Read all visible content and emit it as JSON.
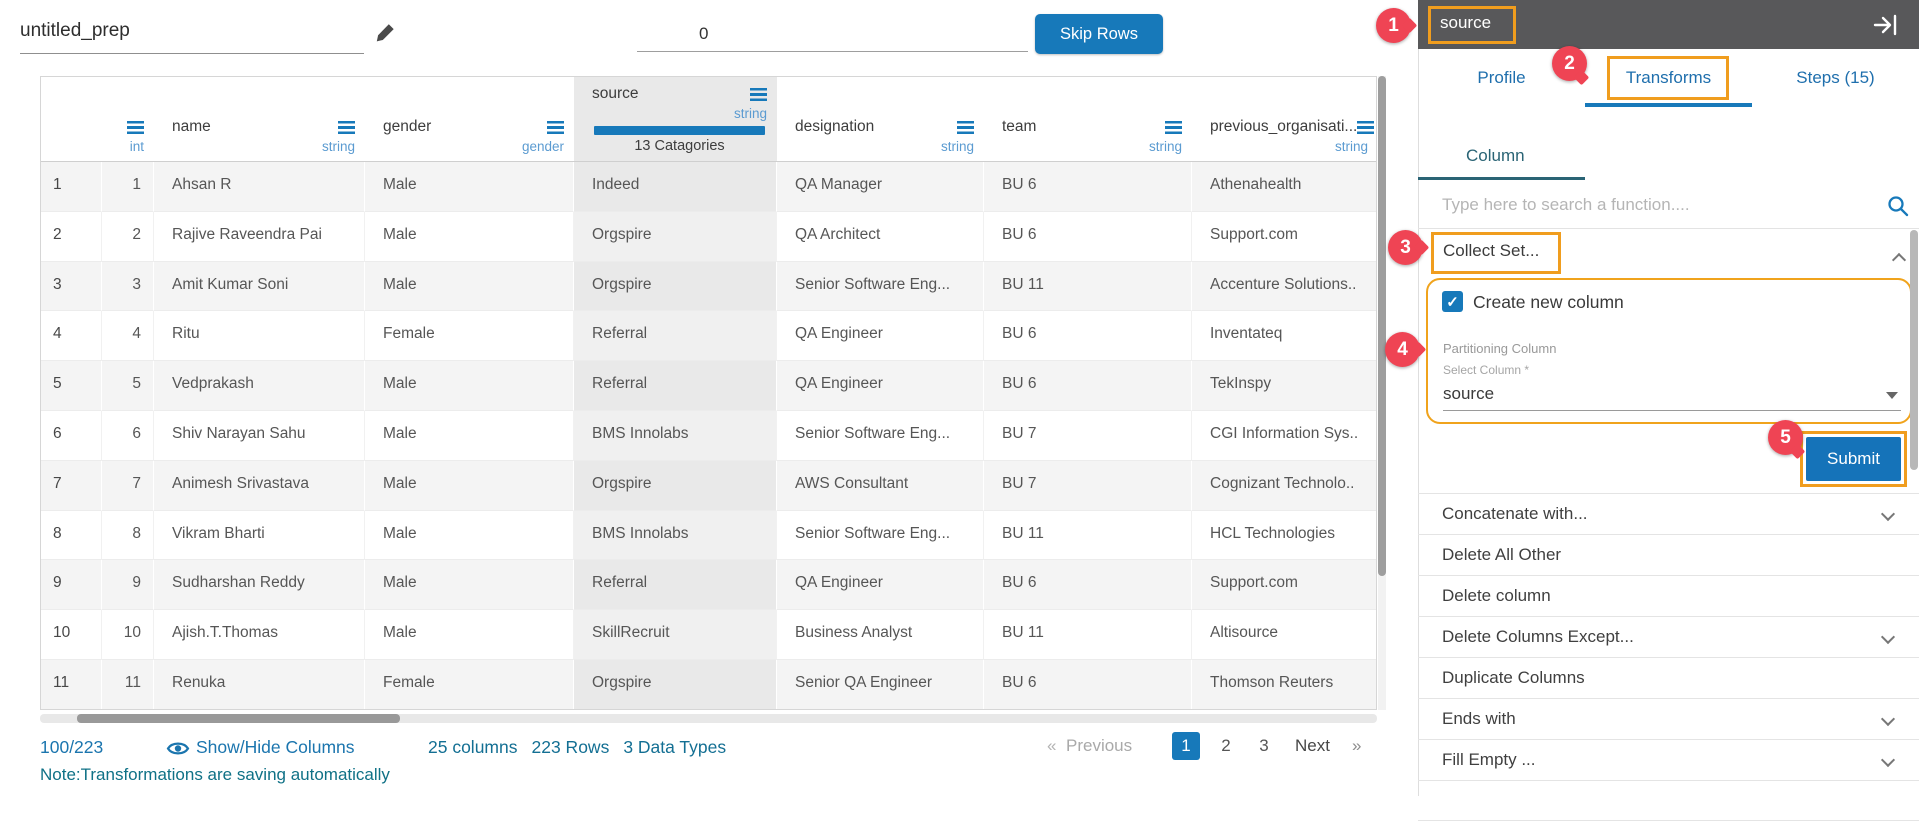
{
  "topbar": {
    "title": "untitled_prep",
    "skip_rows_value": "0",
    "skip_rows_button": "Skip Rows"
  },
  "table": {
    "columns": [
      {
        "label": "",
        "type": "int",
        "kind": "int"
      },
      {
        "label": "name",
        "type": "string",
        "kind": "text"
      },
      {
        "label": "gender",
        "type": "gender",
        "kind": "text"
      },
      {
        "label": "source",
        "type": "string",
        "kind": "source",
        "categories": "13 Catagories"
      },
      {
        "label": "designation",
        "type": "string",
        "kind": "text"
      },
      {
        "label": "team",
        "type": "string",
        "kind": "text"
      },
      {
        "label": "previous_organisati...",
        "type": "string",
        "kind": "text"
      }
    ],
    "rows": [
      [
        "1",
        "1",
        "Ahsan R",
        "Male",
        "Indeed",
        "QA Manager",
        "BU 6",
        "Athenahealth"
      ],
      [
        "2",
        "2",
        "Rajive Raveendra Pai",
        "Male",
        "Orgspire",
        "QA Architect",
        "BU 6",
        "Support.com"
      ],
      [
        "3",
        "3",
        "Amit Kumar Soni",
        "Male",
        "Orgspire",
        "Senior Software Eng...",
        "BU 11",
        "Accenture Solutions.."
      ],
      [
        "4",
        "4",
        "Ritu",
        "Female",
        "Referral",
        "QA Engineer",
        "BU 6",
        "Inventateq"
      ],
      [
        "5",
        "5",
        "Vedprakash",
        "Male",
        "Referral",
        "QA Engineer",
        "BU 6",
        "TekInspy"
      ],
      [
        "6",
        "6",
        "Shiv Narayan Sahu",
        "Male",
        "BMS Innolabs",
        "Senior Software Eng...",
        "BU 7",
        "CGI Information Sys.."
      ],
      [
        "7",
        "7",
        "Animesh Srivastava",
        "Male",
        "Orgspire",
        "AWS Consultant",
        "BU 7",
        "Cognizant Technolo.."
      ],
      [
        "8",
        "8",
        "Vikram Bharti",
        "Male",
        "BMS Innolabs",
        "Senior Software Eng...",
        "BU 11",
        "HCL Technologies"
      ],
      [
        "9",
        "9",
        "Sudharshan Reddy",
        "Male",
        "Referral",
        "QA Engineer",
        "BU 6",
        "Support.com"
      ],
      [
        "10",
        "10",
        "Ajish.T.Thomas",
        "Male",
        "SkillRecruit",
        "Business Analyst",
        "BU 11",
        "Altisource"
      ],
      [
        "11",
        "11",
        "Renuka",
        "Female",
        "Orgspire",
        "Senior QA Engineer",
        "BU 6",
        "Thomson Reuters"
      ]
    ]
  },
  "footer": {
    "count": "100/223",
    "show_hide_label": "Show/Hide Columns",
    "stats": [
      "25 columns",
      "223 Rows",
      "3 Data Types"
    ],
    "pagination": {
      "first": "«",
      "previous": "Previous",
      "pages": [
        "1",
        "2",
        "3"
      ],
      "active_page": "1",
      "next": "Next",
      "last": "»"
    },
    "note": "Note:Transformations are saving automatically"
  },
  "panel": {
    "column_name": "source",
    "tabs": [
      "Profile",
      "Transforms",
      "Steps (15)"
    ],
    "active_tab": "Transforms",
    "subtab": "Column",
    "search_placeholder": "Type here to search a function....",
    "expanded_function": {
      "name": "Collect Set...",
      "checkbox_label": "Create new column",
      "checkbox_checked": true,
      "check_glyph": "✓",
      "group_label": "Partitioning Column",
      "select_label": "Select Column *",
      "select_value": "source",
      "submit_label": "Submit"
    },
    "functions": [
      {
        "label": "Concatenate with...",
        "expandable": true
      },
      {
        "label": "Delete All Other",
        "expandable": false
      },
      {
        "label": "Delete column",
        "expandable": false
      },
      {
        "label": "Delete Columns Except...",
        "expandable": true
      },
      {
        "label": "Duplicate Columns",
        "expandable": false
      },
      {
        "label": "Ends with",
        "expandable": true
      },
      {
        "label": "Fill Empty ...",
        "expandable": true
      }
    ]
  },
  "annotations": {
    "steps": [
      "1",
      "2",
      "3",
      "4",
      "5"
    ]
  },
  "colors": {
    "accent_blue": "#1779ba",
    "annotation_orange": "#f09d1e",
    "annotation_red": "#ef4454",
    "dark_header": "#58585a",
    "note_teal": "#0f7186"
  }
}
